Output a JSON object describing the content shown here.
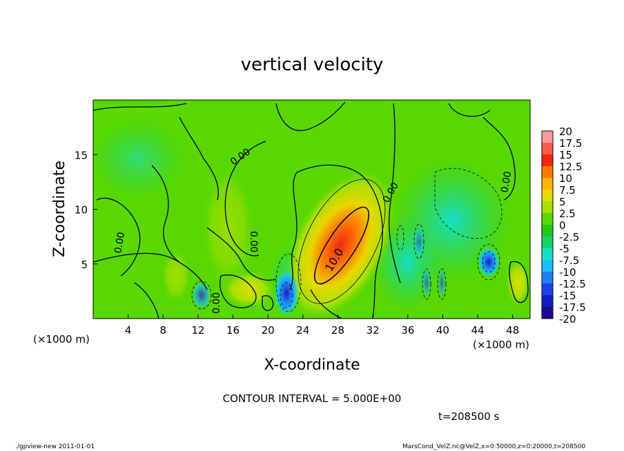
{
  "chart_data": {
    "type": "heatmap",
    "title": "vertical velocity",
    "xlabel": "X-coordinate",
    "ylabel": "Z-coordinate",
    "x_unit": "(×1000 m)",
    "y_unit": "(×1000 m)",
    "x_ticks": [
      4,
      8,
      12,
      16,
      20,
      24,
      28,
      32,
      36,
      40,
      44,
      48
    ],
    "y_ticks": [
      5,
      10,
      15
    ],
    "xlim": [
      0,
      50
    ],
    "ylim": [
      0,
      20
    ],
    "contour_interval": "CONTOUR INTERVAL = 5.000E+00",
    "time_label": "t=208500 s",
    "contour_labels": [
      "0.00",
      "0.00",
      "0.00",
      "0.00",
      "0.00",
      "0.00",
      "10.0"
    ],
    "colorbar": {
      "labels": [
        "20",
        "17.5",
        "15",
        "12.5",
        "10",
        "7.5",
        "5",
        "2.5",
        "0",
        "-2.5",
        "-5",
        "-7.5",
        "-10",
        "-12.5",
        "-15",
        "-17.5",
        "-20"
      ],
      "colors": [
        "#ff9a9a",
        "#ff5a4a",
        "#f02810",
        "#ff7a00",
        "#ffb400",
        "#e8d800",
        "#a8e000",
        "#58d800",
        "#20c81a",
        "#18d070",
        "#14e0c8",
        "#1cc0f0",
        "#2080f0",
        "#2040e8",
        "#1020c0",
        "#200890",
        "#6010b0"
      ]
    },
    "features": [
      {
        "type": "updraft",
        "x": 29,
        "z": 7.5,
        "peak": 12.5
      },
      {
        "type": "downdraft",
        "x": 22,
        "z": 2,
        "min": -12.5
      },
      {
        "type": "downdraft",
        "x": 45.5,
        "z": 5,
        "min": -12.5
      },
      {
        "type": "downdraft",
        "x": 12.5,
        "z": 2,
        "min": -7.5
      }
    ]
  },
  "footer": {
    "left": "./gpview-new   2011-01-01",
    "right": "MarsCond_VelZ.nc@VelZ,x=0:50000,z=0:20000,t=208500"
  }
}
